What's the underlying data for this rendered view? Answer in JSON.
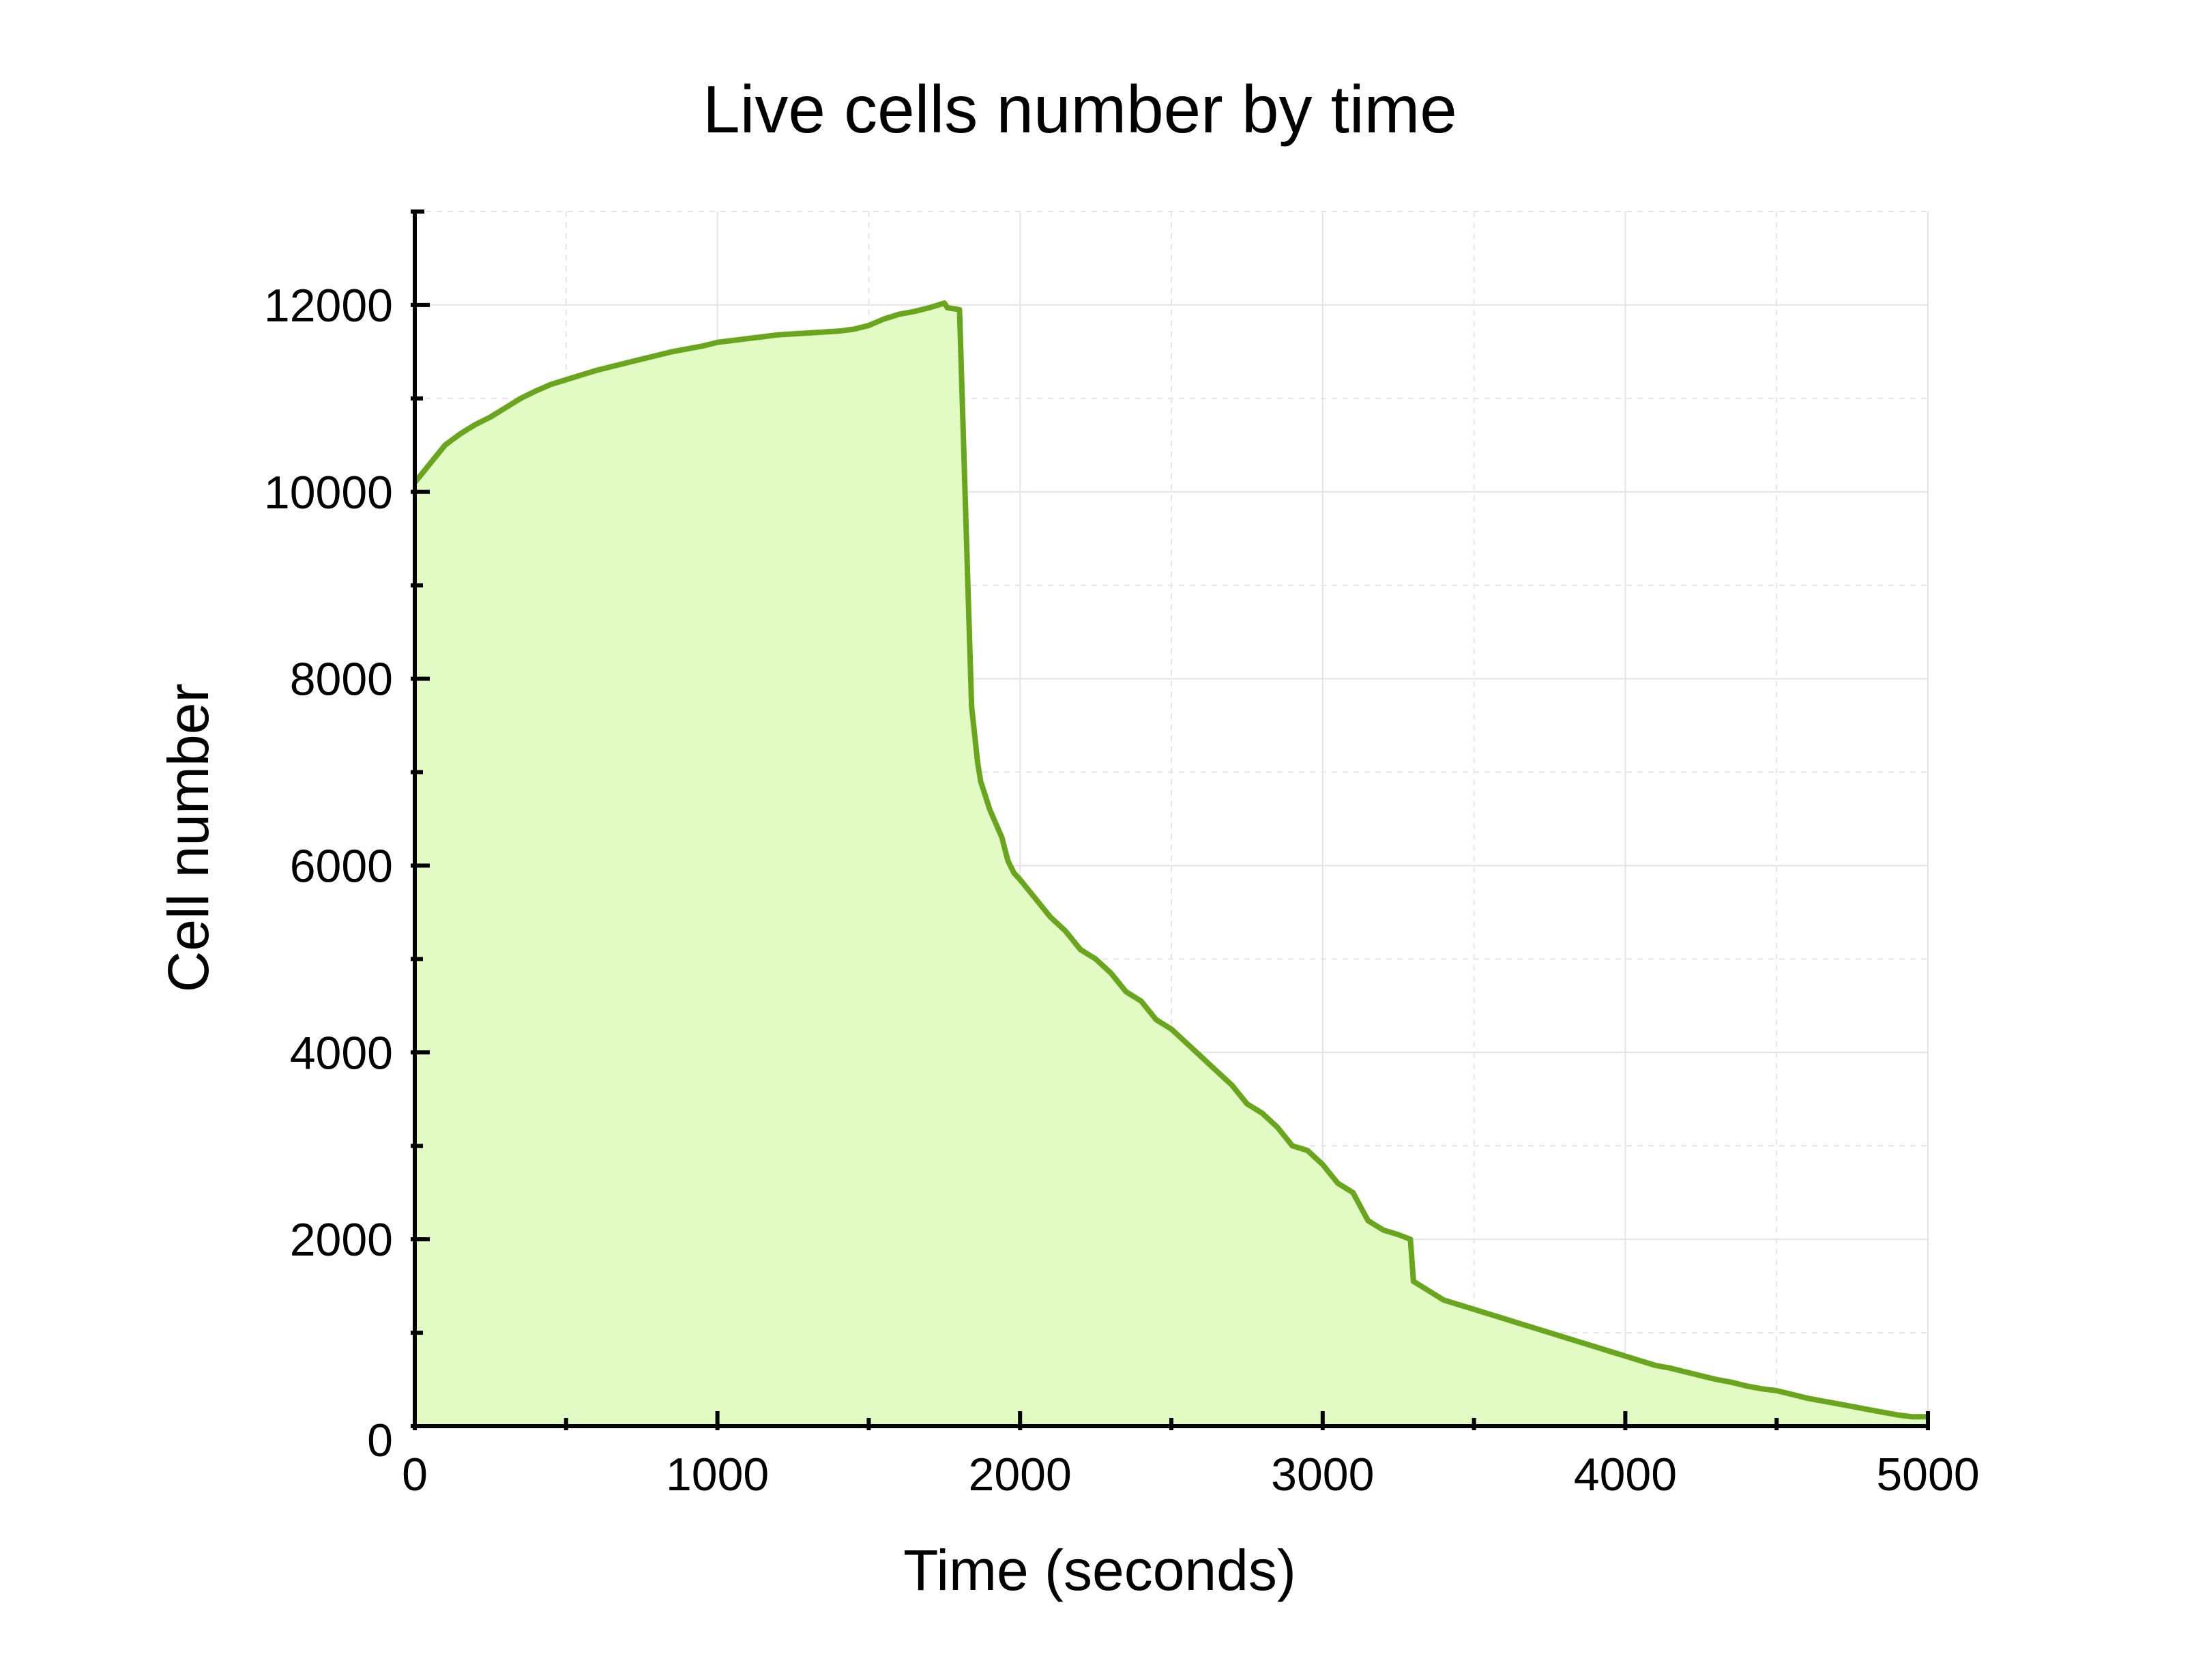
{
  "chart_data": {
    "type": "area",
    "title": "Live cells number by time",
    "xlabel": "Time (seconds)",
    "ylabel": "Cell number",
    "xlim": [
      0,
      5000
    ],
    "ylim": [
      0,
      13000
    ],
    "x_ticks": [
      0,
      1000,
      2000,
      3000,
      4000,
      5000
    ],
    "x_tick_labels": [
      "0",
      "1000",
      "2000",
      "3000",
      "4000",
      "5000"
    ],
    "y_ticks": [
      0,
      2000,
      4000,
      6000,
      8000,
      10000,
      12000
    ],
    "y_tick_labels": [
      "0",
      "2000",
      "4000",
      "6000",
      "8000",
      "10000",
      "12000"
    ],
    "grid": true,
    "legend": "none",
    "colors": {
      "line": "#6aa51e",
      "fill": "#e2fbc4",
      "grid": "#e4e4e4",
      "axis": "#000000"
    },
    "series": [
      {
        "x": [
          0,
          50,
          100,
          150,
          200,
          250,
          300,
          350,
          400,
          450,
          500,
          550,
          600,
          650,
          700,
          750,
          800,
          850,
          900,
          950,
          1000,
          1050,
          1100,
          1150,
          1200,
          1250,
          1300,
          1350,
          1400,
          1450,
          1500,
          1550,
          1600,
          1650,
          1700,
          1750,
          1760,
          1800,
          1820,
          1840,
          1860,
          1870,
          1880,
          1890,
          1900,
          1920,
          1940,
          1960,
          1980,
          2000,
          2050,
          2100,
          2150,
          2200,
          2250,
          2300,
          2350,
          2400,
          2450,
          2500,
          2550,
          2600,
          2650,
          2700,
          2750,
          2800,
          2850,
          2900,
          2950,
          3000,
          3050,
          3100,
          3150,
          3200,
          3250,
          3290,
          3300,
          3350,
          3400,
          3450,
          3500,
          3550,
          3600,
          3650,
          3700,
          3750,
          3800,
          3850,
          3900,
          3950,
          4000,
          4050,
          4100,
          4150,
          4200,
          4250,
          4300,
          4350,
          4400,
          4450,
          4500,
          4550,
          4600,
          4650,
          4700,
          4750,
          4800,
          4850,
          4900,
          4950,
          5000
        ],
        "values": [
          10100,
          10300,
          10500,
          10620,
          10720,
          10800,
          10900,
          11000,
          11080,
          11150,
          11200,
          11250,
          11300,
          11340,
          11380,
          11420,
          11460,
          11500,
          11530,
          11560,
          11600,
          11620,
          11640,
          11660,
          11680,
          11690,
          11700,
          11710,
          11720,
          11740,
          11780,
          11850,
          11900,
          11930,
          11970,
          12020,
          11970,
          11950,
          9800,
          7700,
          7100,
          6900,
          6800,
          6700,
          6600,
          6450,
          6300,
          6050,
          5920,
          5850,
          5650,
          5450,
          5300,
          5100,
          5000,
          4850,
          4650,
          4550,
          4350,
          4250,
          4100,
          3950,
          3800,
          3650,
          3450,
          3350,
          3200,
          3000,
          2950,
          2800,
          2600,
          2500,
          2200,
          2100,
          2050,
          2000,
          1550,
          1450,
          1350,
          1300,
          1250,
          1200,
          1150,
          1100,
          1050,
          1000,
          950,
          900,
          850,
          800,
          750,
          700,
          650,
          620,
          580,
          540,
          500,
          470,
          430,
          400,
          380,
          340,
          300,
          270,
          240,
          210,
          180,
          150,
          120,
          100,
          100
        ]
      }
    ]
  }
}
